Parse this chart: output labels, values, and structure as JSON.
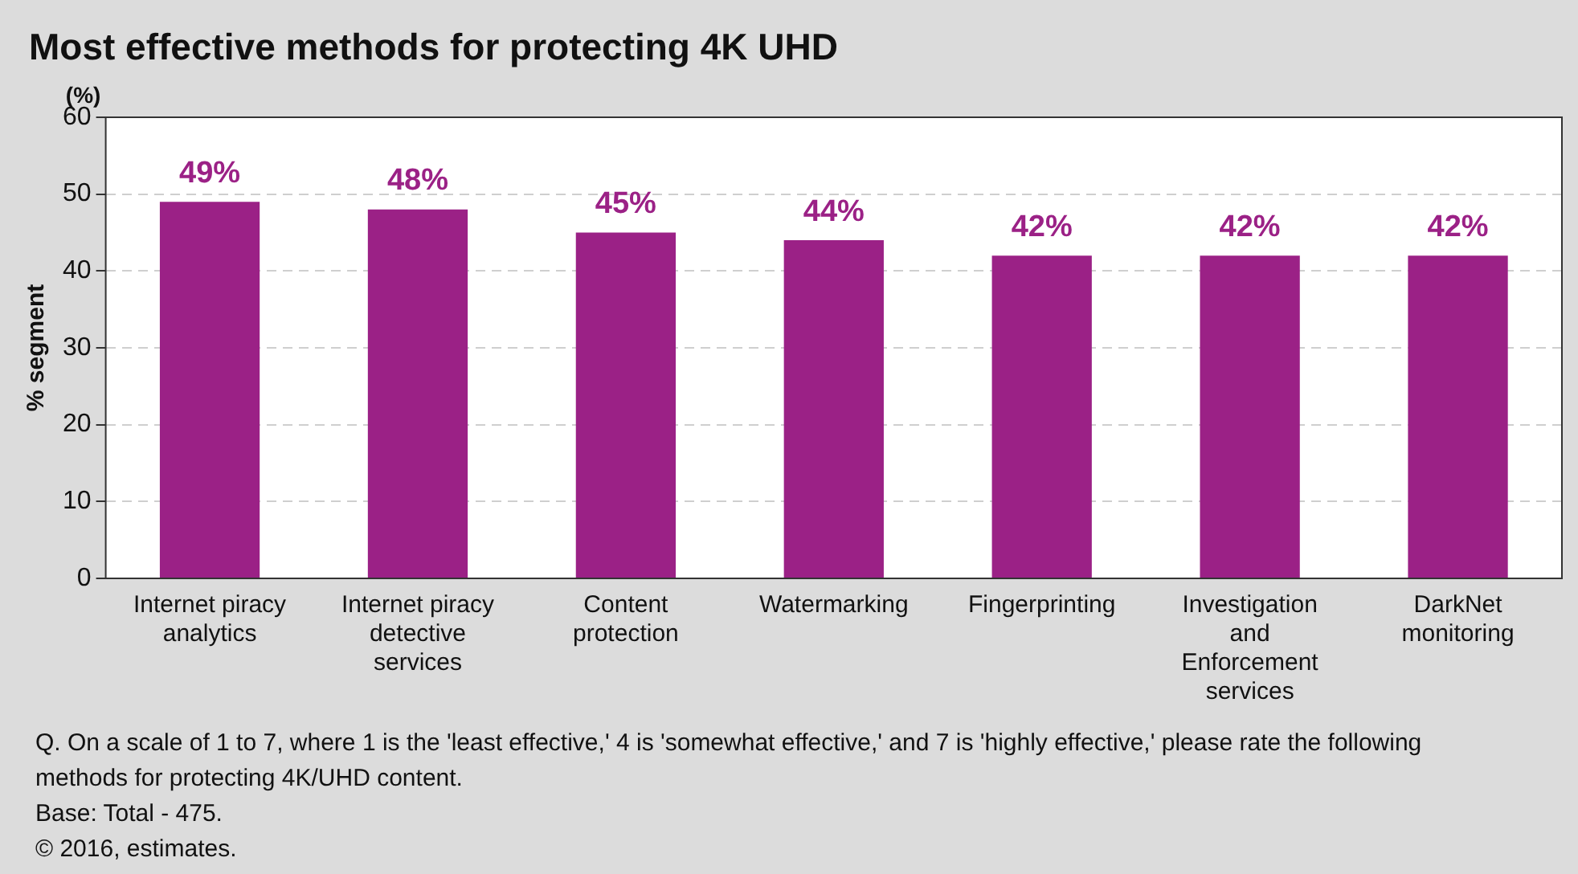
{
  "chart_data": {
    "type": "bar",
    "title": "Most effective methods for protecting 4K UHD",
    "ylabel": "% segment",
    "categories": [
      "Internet piracy analytics",
      "Internet piracy detective services",
      "Content protection",
      "Watermarking",
      "Fingerprinting",
      "Investigation and Enforcement services",
      "DarkNet monitoring"
    ],
    "values": [
      49,
      48,
      45,
      44,
      42,
      42,
      42
    ],
    "value_labels": [
      "49%",
      "48%",
      "45%",
      "44%",
      "42%",
      "42%",
      "42%"
    ],
    "color": "#9b2186",
    "ylim": [
      0,
      60
    ],
    "yticks": [
      0,
      10,
      20,
      30,
      40,
      50,
      60
    ],
    "grid": "y",
    "legend": false,
    "annotations": [
      "(%)",
      "Q. On a scale of 1 to 7, where 1 is the 'least effective,' 4 is 'somewhat effective,' and 7 is 'highly effective,' please rate the following methods for protecting 4K/UHD content.",
      "Base: Total - 475.",
      "© 2016, estimates."
    ]
  }
}
